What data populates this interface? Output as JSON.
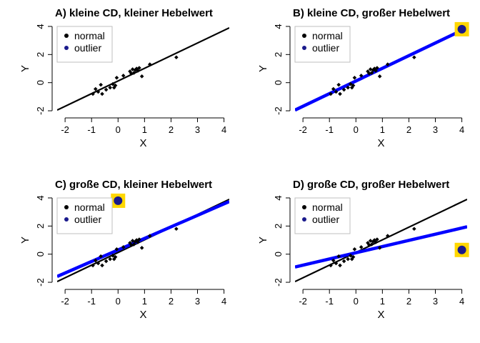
{
  "colors": {
    "normal_points": "#000000",
    "normal_line": "#000000",
    "outlier_point": "#1a1a8c",
    "outlier_line": "#0000ff",
    "outlier_highlight": "#ffd700",
    "legend_border": "#bfbfbf"
  },
  "legend": {
    "entries": [
      {
        "label": "normal",
        "color": "#000000"
      },
      {
        "label": "outlier",
        "color": "#1a1a8c"
      }
    ],
    "placement": "top-left"
  },
  "chart_data": [
    {
      "type": "scatter",
      "title": "A)  kleine CD, kleiner Hebelwert",
      "xlabel": "X",
      "ylabel": "Y",
      "xlim": [
        -2.3,
        4.2
      ],
      "ylim": [
        -2.1,
        4.1
      ],
      "xticks": [
        "-2",
        "-1",
        "0",
        "1",
        "2",
        "3",
        "4"
      ],
      "yticks": [
        "-2",
        "0",
        "2",
        "4"
      ],
      "series": [
        {
          "points": [
            [
              -0.95,
              -0.8
            ],
            [
              -0.85,
              -0.45
            ],
            [
              -0.75,
              -0.65
            ],
            [
              -0.65,
              -0.15
            ],
            [
              -0.6,
              -0.8
            ],
            [
              -0.45,
              -0.5
            ],
            [
              -0.3,
              -0.35
            ],
            [
              -0.2,
              -0.1
            ],
            [
              -0.15,
              -0.35
            ],
            [
              -0.1,
              -0.2
            ],
            [
              -0.05,
              0.35
            ],
            [
              0.2,
              0.5
            ],
            [
              0.45,
              0.8
            ],
            [
              0.5,
              0.65
            ],
            [
              0.55,
              0.95
            ],
            [
              0.6,
              0.7
            ],
            [
              0.65,
              0.9
            ],
            [
              0.7,
              1.0
            ],
            [
              0.75,
              0.85
            ],
            [
              0.8,
              1.05
            ],
            [
              0.9,
              0.45
            ],
            [
              1.2,
              1.3
            ],
            [
              2.2,
              1.8
            ]
          ]
        }
      ],
      "outlier": null,
      "fit_lines": [
        {
          "role": "normal",
          "intercept": 0.12,
          "slope": 0.9
        }
      ]
    },
    {
      "type": "scatter",
      "title": "B)  kleine CD, großer Hebelwert",
      "xlabel": "X",
      "ylabel": "Y",
      "xlim": [
        -2.3,
        4.2
      ],
      "ylim": [
        -2.1,
        4.1
      ],
      "xticks": [
        "-2",
        "-1",
        "0",
        "1",
        "2",
        "3",
        "4"
      ],
      "yticks": [
        "-2",
        "0",
        "2",
        "4"
      ],
      "series": [
        {
          "points": [
            [
              -0.95,
              -0.8
            ],
            [
              -0.85,
              -0.45
            ],
            [
              -0.75,
              -0.65
            ],
            [
              -0.65,
              -0.15
            ],
            [
              -0.6,
              -0.8
            ],
            [
              -0.45,
              -0.5
            ],
            [
              -0.3,
              -0.35
            ],
            [
              -0.2,
              -0.1
            ],
            [
              -0.15,
              -0.35
            ],
            [
              -0.1,
              -0.2
            ],
            [
              -0.05,
              0.35
            ],
            [
              0.2,
              0.5
            ],
            [
              0.45,
              0.8
            ],
            [
              0.5,
              0.65
            ],
            [
              0.55,
              0.95
            ],
            [
              0.6,
              0.7
            ],
            [
              0.65,
              0.9
            ],
            [
              0.7,
              1.0
            ],
            [
              0.75,
              0.85
            ],
            [
              0.8,
              1.05
            ],
            [
              0.9,
              0.45
            ],
            [
              1.2,
              1.3
            ],
            [
              2.2,
              1.8
            ]
          ]
        }
      ],
      "outlier": [
        4.0,
        3.8
      ],
      "fit_lines": [
        {
          "role": "normal",
          "intercept": 0.12,
          "slope": 0.9
        },
        {
          "role": "outlier",
          "intercept": 0.12,
          "slope": 0.9
        }
      ]
    },
    {
      "type": "scatter",
      "title": "C)  große CD, kleiner Hebelwert",
      "xlabel": "X",
      "ylabel": "Y",
      "xlim": [
        -2.3,
        4.2
      ],
      "ylim": [
        -2.1,
        4.1
      ],
      "xticks": [
        "-2",
        "-1",
        "0",
        "1",
        "2",
        "3",
        "4"
      ],
      "yticks": [
        "-2",
        "0",
        "2",
        "4"
      ],
      "series": [
        {
          "points": [
            [
              -0.95,
              -0.8
            ],
            [
              -0.85,
              -0.45
            ],
            [
              -0.75,
              -0.65
            ],
            [
              -0.65,
              -0.15
            ],
            [
              -0.6,
              -0.8
            ],
            [
              -0.45,
              -0.5
            ],
            [
              -0.3,
              -0.35
            ],
            [
              -0.2,
              -0.1
            ],
            [
              -0.15,
              -0.35
            ],
            [
              -0.1,
              -0.2
            ],
            [
              -0.05,
              0.35
            ],
            [
              0.2,
              0.5
            ],
            [
              0.45,
              0.8
            ],
            [
              0.5,
              0.65
            ],
            [
              0.55,
              0.95
            ],
            [
              0.6,
              0.7
            ],
            [
              0.65,
              0.9
            ],
            [
              0.7,
              1.0
            ],
            [
              0.75,
              0.85
            ],
            [
              0.8,
              1.05
            ],
            [
              0.9,
              0.45
            ],
            [
              1.2,
              1.3
            ],
            [
              2.2,
              1.8
            ]
          ]
        }
      ],
      "outlier": [
        0.0,
        3.8
      ],
      "fit_lines": [
        {
          "role": "normal",
          "intercept": 0.12,
          "slope": 0.9
        },
        {
          "role": "outlier",
          "intercept": 0.3,
          "slope": 0.82
        }
      ]
    },
    {
      "type": "scatter",
      "title": "D)  große CD, großer Hebelwert",
      "xlabel": "X",
      "ylabel": "Y",
      "xlim": [
        -2.3,
        4.2
      ],
      "ylim": [
        -2.1,
        4.1
      ],
      "xticks": [
        "-2",
        "-1",
        "0",
        "1",
        "2",
        "3",
        "4"
      ],
      "yticks": [
        "-2",
        "0",
        "2",
        "4"
      ],
      "series": [
        {
          "points": [
            [
              -0.95,
              -0.8
            ],
            [
              -0.85,
              -0.45
            ],
            [
              -0.75,
              -0.65
            ],
            [
              -0.65,
              -0.15
            ],
            [
              -0.6,
              -0.8
            ],
            [
              -0.45,
              -0.5
            ],
            [
              -0.3,
              -0.35
            ],
            [
              -0.2,
              -0.1
            ],
            [
              -0.15,
              -0.35
            ],
            [
              -0.1,
              -0.2
            ],
            [
              -0.05,
              0.35
            ],
            [
              0.2,
              0.5
            ],
            [
              0.45,
              0.8
            ],
            [
              0.5,
              0.65
            ],
            [
              0.55,
              0.95
            ],
            [
              0.6,
              0.7
            ],
            [
              0.65,
              0.9
            ],
            [
              0.7,
              1.0
            ],
            [
              0.75,
              0.85
            ],
            [
              0.8,
              1.05
            ],
            [
              0.9,
              0.45
            ],
            [
              1.2,
              1.3
            ],
            [
              2.2,
              1.8
            ]
          ]
        }
      ],
      "outlier": [
        4.0,
        0.3
      ],
      "fit_lines": [
        {
          "role": "normal",
          "intercept": 0.12,
          "slope": 0.9
        },
        {
          "role": "outlier",
          "intercept": 0.1,
          "slope": 0.44
        }
      ]
    }
  ]
}
